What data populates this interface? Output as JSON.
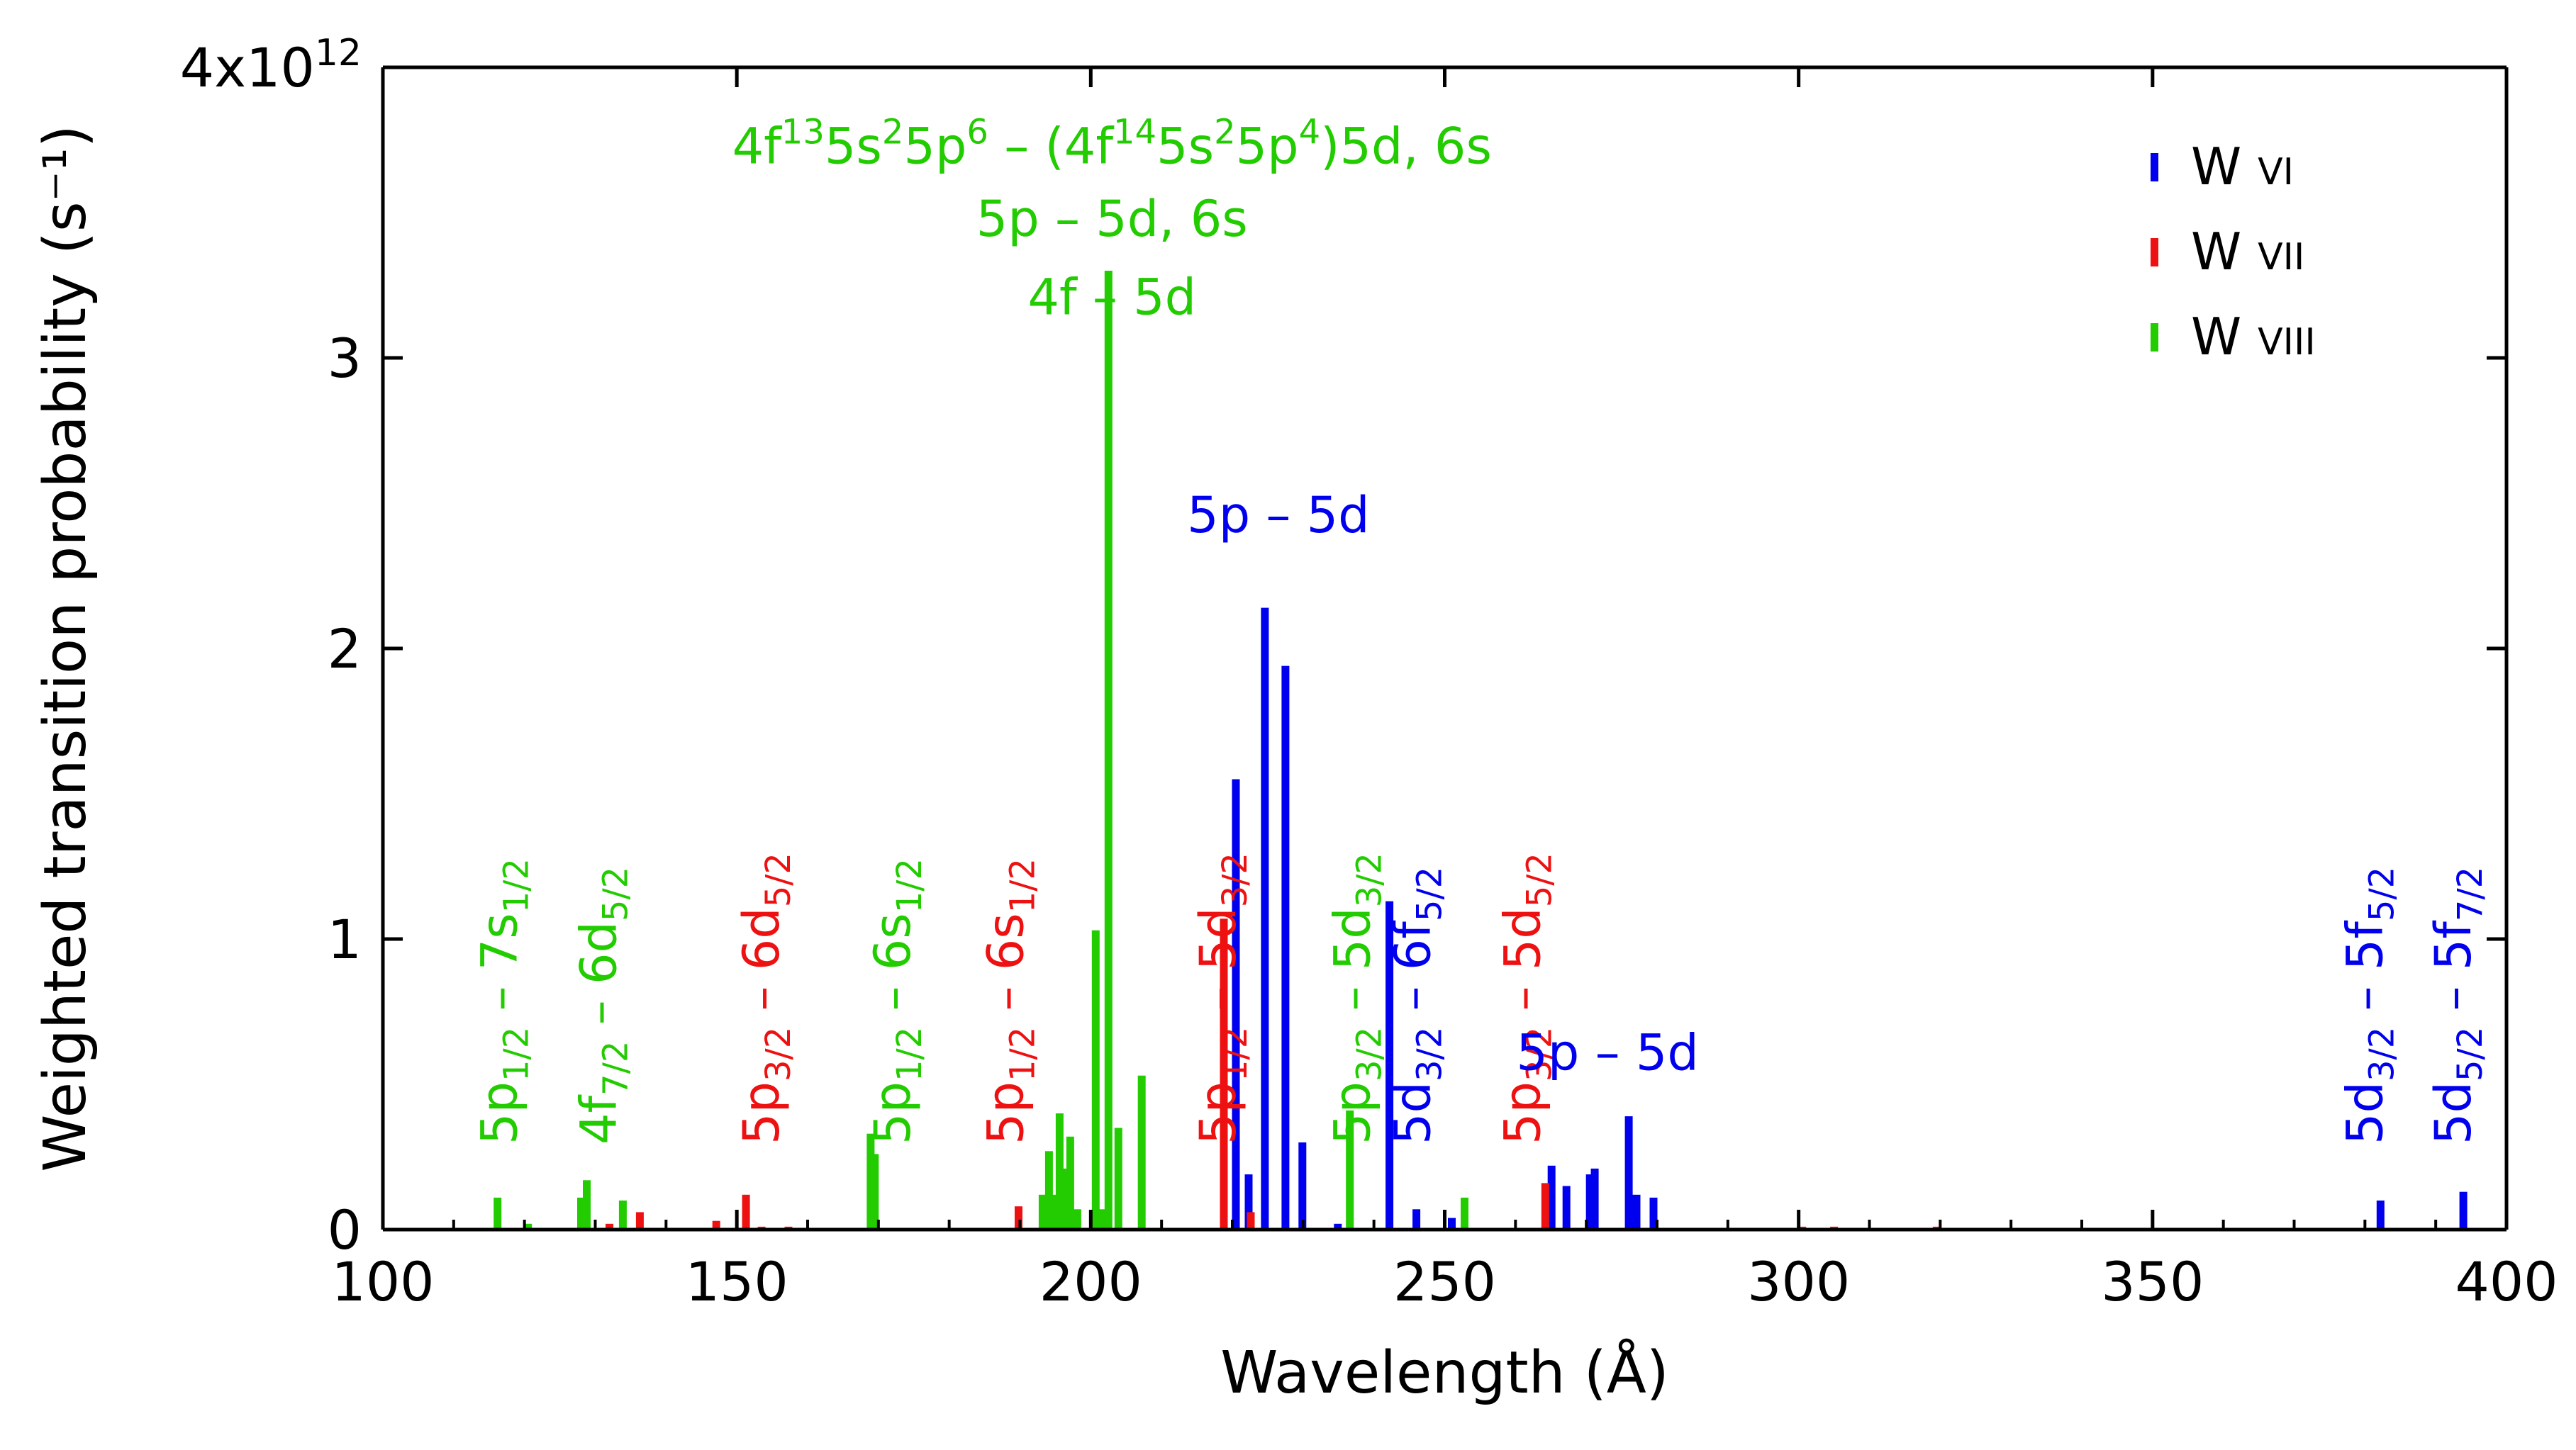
{
  "chart_data": {
    "type": "bar",
    "xlabel": "Wavelength (Å)",
    "ylabel": "Weighted transition probability (s⁻¹)",
    "xlim": [
      100,
      400
    ],
    "ylim": [
      0,
      4
    ],
    "y_multiplier_label": {
      "base": "4x10",
      "exp": "12"
    },
    "x_ticks": [
      100,
      150,
      200,
      250,
      300,
      350,
      400
    ],
    "y_ticks": [
      {
        "value": 0,
        "label": "0"
      },
      {
        "value": 1,
        "label": "1"
      },
      {
        "value": 2,
        "label": "2"
      },
      {
        "value": 3,
        "label": "3"
      }
    ],
    "units_note": "y values in units of 10^12 s^-1",
    "legend": [
      {
        "name": "W",
        "ion": "VI",
        "color": "#0000ee"
      },
      {
        "name": "W",
        "ion": "VII",
        "color": "#ee1111"
      },
      {
        "name": "W",
        "ion": "VIII",
        "color": "#22cc00"
      }
    ],
    "series": [
      {
        "name": "W VI",
        "color": "#0000ee",
        "points": [
          [
            220.5,
            1.55
          ],
          [
            222.3,
            0.19
          ],
          [
            224.6,
            2.14
          ],
          [
            227.5,
            1.94
          ],
          [
            229.9,
            0.3
          ],
          [
            234.9,
            0.02
          ],
          [
            242.2,
            1.13
          ],
          [
            246.0,
            0.07
          ],
          [
            251.0,
            0.04
          ],
          [
            265.1,
            0.22
          ],
          [
            267.2,
            0.15
          ],
          [
            270.5,
            0.19
          ],
          [
            271.2,
            0.21
          ],
          [
            276.0,
            0.39
          ],
          [
            277.1,
            0.12
          ],
          [
            279.5,
            0.11
          ],
          [
            382.2,
            0.1
          ],
          [
            393.9,
            0.13
          ]
        ]
      },
      {
        "name": "W VII",
        "color": "#ee1111",
        "points": [
          [
            132.0,
            0.02
          ],
          [
            136.3,
            0.06
          ],
          [
            147.1,
            0.03
          ],
          [
            151.3,
            0.12
          ],
          [
            153.5,
            0.01
          ],
          [
            157.3,
            0.01
          ],
          [
            189.8,
            0.08
          ],
          [
            218.8,
            1.07
          ],
          [
            222.6,
            0.06
          ],
          [
            264.2,
            0.16
          ],
          [
            300.5,
            0.01
          ],
          [
            305.0,
            0.01
          ],
          [
            319.5,
            0.01
          ]
        ]
      },
      {
        "name": "W VIII",
        "color": "#22cc00",
        "points": [
          [
            116.2,
            0.11
          ],
          [
            120.5,
            0.02
          ],
          [
            128.0,
            0.11
          ],
          [
            128.8,
            0.17
          ],
          [
            133.9,
            0.1
          ],
          [
            168.9,
            0.33
          ],
          [
            169.5,
            0.26
          ],
          [
            193.2,
            0.12
          ],
          [
            194.1,
            0.27
          ],
          [
            194.9,
            0.12
          ],
          [
            195.6,
            0.4
          ],
          [
            196.5,
            0.21
          ],
          [
            197.1,
            0.32
          ],
          [
            198.1,
            0.07
          ],
          [
            200.7,
            1.03
          ],
          [
            201.6,
            0.07
          ],
          [
            202.5,
            3.3
          ],
          [
            203.9,
            0.35
          ],
          [
            207.2,
            0.53
          ],
          [
            236.6,
            0.41
          ],
          [
            252.8,
            0.11
          ]
        ]
      }
    ],
    "annotations": [
      {
        "text": "5p",
        "sub1": "1/2",
        "mid": " – 7s",
        "sub2": "1/2",
        "color": "#22cc00",
        "x": 116.5,
        "rotated": true
      },
      {
        "text": "4f",
        "sub1": "7/2",
        "mid": " – 6d",
        "sub2": "5/2",
        "color": "#22cc00",
        "x": 130.5,
        "rotated": true
      },
      {
        "text": "5p",
        "sub1": "3/2",
        "mid": " – 6d",
        "sub2": "5/2",
        "color": "#ee1111",
        "x": 153.5,
        "rotated": true
      },
      {
        "text": "5p",
        "sub1": "1/2",
        "mid": " – 6s",
        "sub2": "1/2",
        "color": "#22cc00",
        "x": 172.0,
        "rotated": true
      },
      {
        "text": "5p",
        "sub1": "1/2",
        "mid": " – 6s",
        "sub2": "1/2",
        "color": "#ee1111",
        "x": 188.0,
        "rotated": true
      },
      {
        "text": "5p",
        "sub1": "1/2",
        "mid": " – 5d",
        "sub2": "3/2",
        "color": "#ee1111",
        "x": 218.0,
        "rotated": true
      },
      {
        "text": "5p",
        "sub1": "3/2",
        "mid": " – 5d",
        "sub2": "3/2",
        "color": "#22cc00",
        "x": 237.0,
        "rotated": true
      },
      {
        "text": "5d",
        "sub1": "3/2",
        "mid": " – 6f",
        "sub2": "5/2",
        "color": "#0000ee",
        "x": 245.5,
        "rotated": true
      },
      {
        "text": "5p",
        "sub1": "3/2",
        "mid": " – 5d",
        "sub2": "5/2",
        "color": "#ee1111",
        "x": 261.0,
        "rotated": true
      },
      {
        "text": "5d",
        "sub1": "3/2",
        "mid": " – 5f",
        "sub2": "5/2",
        "color": "#0000ee",
        "x": 380.0,
        "rotated": true
      },
      {
        "text": "5d",
        "sub1": "5/2",
        "mid": " – 5f",
        "sub2": "7/2",
        "color": "#0000ee",
        "x": 392.5,
        "rotated": true
      }
    ],
    "horizontal_annotations": [
      {
        "id": "config",
        "color": "#22cc00",
        "parts": [
          [
            "4f",
            ""
          ],
          [
            "13",
            "sup"
          ],
          [
            "5s",
            ""
          ],
          [
            "2",
            "sup"
          ],
          [
            "5p",
            ""
          ],
          [
            "6",
            "sup"
          ],
          [
            " – (4f",
            ""
          ],
          [
            "14",
            "sup"
          ],
          [
            "5s",
            ""
          ],
          [
            "2",
            "sup"
          ],
          [
            "5p",
            ""
          ],
          [
            "4",
            "sup"
          ],
          [
            ")5d, 6s",
            ""
          ]
        ],
        "x": 203.0,
        "y": 3.67
      },
      {
        "id": "w8-5p5d6s",
        "color": "#22cc00",
        "text": "5p – 5d, 6s",
        "x": 203.0,
        "y": 3.42
      },
      {
        "id": "w8-4f5d",
        "color": "#22cc00",
        "text": "4f – 5d",
        "x": 203.0,
        "y": 3.15
      },
      {
        "id": "w6-5p5d-upper",
        "color": "#0000ee",
        "text": "5p – 5d",
        "x": 226.5,
        "y": 2.4
      },
      {
        "id": "w6-5p5d-lower",
        "color": "#0000ee",
        "text": "5p – 5d",
        "x": 273.0,
        "y": 0.55
      }
    ]
  }
}
